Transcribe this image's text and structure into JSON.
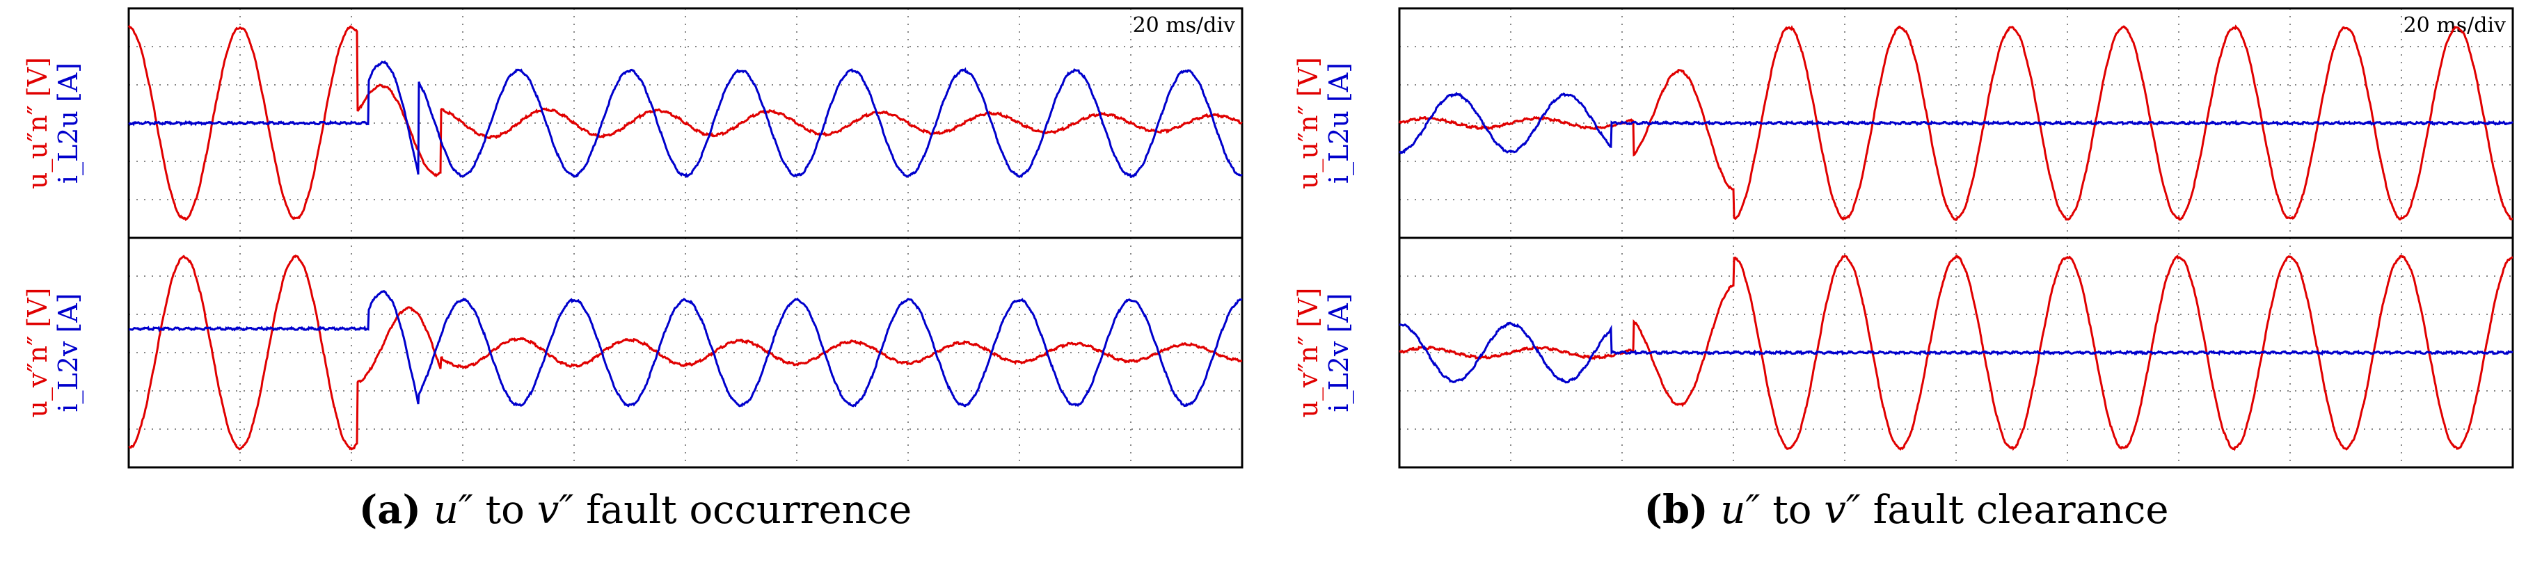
{
  "chart_data": [
    {
      "type": "line",
      "panel_id": "a",
      "caption": {
        "label": "(a)",
        "var1": "u″",
        "connector": "to",
        "var2": "v″",
        "text": "fault occurrence"
      },
      "timebase": "20 ms/div",
      "grid": true,
      "x": {
        "unit": "ms",
        "range": [
          0,
          200
        ],
        "divisions": 10
      },
      "subplots": [
        {
          "ylabel_red": "u_u″n″ [V]",
          "ylabel_blue": "i_L2u [A]",
          "ylim": [
            -1.2,
            1.2
          ],
          "series": [
            {
              "color": "#e00000",
              "fault_time_ms": 41,
              "segments": [
                {
                  "t_start": 0,
                  "t_end": 41,
                  "amplitude": 1.0,
                  "period_ms": 20,
                  "phase_ms": -5
                },
                {
                  "t_start": 41,
                  "t_end": 56,
                  "amplitude": 0.55,
                  "period_ms": 20,
                  "phase_ms": 0,
                  "transient": true
                },
                {
                  "t_start": 56,
                  "t_end": 200,
                  "amplitude": 0.15,
                  "period_ms": 20,
                  "phase_ms": 10,
                  "decay_to": 0.08
                }
              ]
            },
            {
              "color": "#0000cc",
              "fault_time_ms": 43,
              "segments": [
                {
                  "t_start": 0,
                  "t_end": 43,
                  "amplitude": 0.0
                },
                {
                  "t_start": 43,
                  "t_end": 52,
                  "amplitude": 0.9,
                  "transient": true
                },
                {
                  "t_start": 52,
                  "t_end": 200,
                  "amplitude": 0.55,
                  "period_ms": 20,
                  "phase_ms": 5
                }
              ]
            }
          ]
        },
        {
          "ylabel_red": "u_v″n″ [V]",
          "ylabel_blue": "i_L2v [A]",
          "ylim": [
            -1.2,
            1.2
          ],
          "series": [
            {
              "color": "#e00000",
              "fault_time_ms": 41,
              "segments": [
                {
                  "t_start": 0,
                  "t_end": 41,
                  "amplitude": 1.0,
                  "period_ms": 20,
                  "phase_ms": 5
                },
                {
                  "t_start": 41,
                  "t_end": 56,
                  "amplitude": 0.55,
                  "period_ms": 20,
                  "phase_ms": 5,
                  "transient": true
                },
                {
                  "t_start": 56,
                  "t_end": 200,
                  "amplitude": 0.15,
                  "period_ms": 20,
                  "phase_ms": 5,
                  "decay_to": 0.08
                }
              ]
            },
            {
              "color": "#0000cc",
              "fault_time_ms": 43,
              "segments": [
                {
                  "t_start": 0,
                  "t_end": 43,
                  "amplitude": 0.0,
                  "offset": 0.25
                },
                {
                  "t_start": 43,
                  "t_end": 52,
                  "amplitude": 0.9,
                  "transient": true
                },
                {
                  "t_start": 52,
                  "t_end": 200,
                  "amplitude": 0.55,
                  "period_ms": 20,
                  "phase_ms": -5
                }
              ]
            }
          ]
        }
      ]
    },
    {
      "type": "line",
      "panel_id": "b",
      "caption": {
        "label": "(b)",
        "var1": "u″",
        "connector": "to",
        "var2": "v″",
        "text": "fault clearance"
      },
      "timebase": "20 ms/div",
      "grid": true,
      "x": {
        "unit": "ms",
        "range": [
          0,
          200
        ],
        "divisions": 10
      },
      "subplots": [
        {
          "ylabel_red": "u_u″n″ [V]",
          "ylabel_blue": "i_L2u [A]",
          "ylim": [
            -1.2,
            1.2
          ],
          "series": [
            {
              "color": "#e00000",
              "clear_time_ms": 42,
              "segments": [
                {
                  "t_start": 0,
                  "t_end": 42,
                  "amplitude": 0.05,
                  "period_ms": 20,
                  "phase_ms": 0
                },
                {
                  "t_start": 42,
                  "t_end": 60,
                  "amplitude": 0.7,
                  "period_ms": 20,
                  "phase_ms": 5,
                  "transient": true
                },
                {
                  "t_start": 60,
                  "t_end": 200,
                  "amplitude": 1.0,
                  "period_ms": 20,
                  "phase_ms": 5
                }
              ]
            },
            {
              "color": "#0000cc",
              "clear_time_ms": 38,
              "segments": [
                {
                  "t_start": 0,
                  "t_end": 38,
                  "amplitude": 0.3,
                  "period_ms": 20,
                  "phase_ms": 5
                },
                {
                  "t_start": 38,
                  "t_end": 200,
                  "amplitude": 0.0
                }
              ]
            }
          ]
        },
        {
          "ylabel_red": "u_v″n″ [V]",
          "ylabel_blue": "i_L2v [A]",
          "ylim": [
            -1.2,
            1.2
          ],
          "series": [
            {
              "color": "#e00000",
              "clear_time_ms": 42,
              "segments": [
                {
                  "t_start": 0,
                  "t_end": 42,
                  "amplitude": 0.05,
                  "period_ms": 20,
                  "phase_ms": 0
                },
                {
                  "t_start": 42,
                  "t_end": 60,
                  "amplitude": 0.7,
                  "period_ms": 20,
                  "phase_ms": -5,
                  "transient": true
                },
                {
                  "t_start": 60,
                  "t_end": 200,
                  "amplitude": 1.0,
                  "period_ms": 20,
                  "phase_ms": -5
                }
              ]
            },
            {
              "color": "#0000cc",
              "clear_time_ms": 38,
              "segments": [
                {
                  "t_start": 0,
                  "t_end": 38,
                  "amplitude": 0.3,
                  "period_ms": 20,
                  "phase_ms": -5
                },
                {
                  "t_start": 38,
                  "t_end": 200,
                  "amplitude": 0.0
                }
              ]
            }
          ]
        }
      ]
    }
  ]
}
